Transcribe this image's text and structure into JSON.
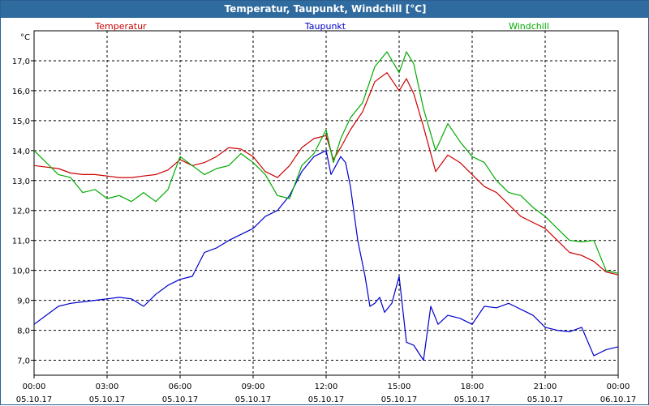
{
  "window": {
    "title": "Temperatur, Taupunkt, Windchill [°C]"
  },
  "chart_data": {
    "type": "line",
    "title": "Temperatur, Taupunkt, Windchill [°C]",
    "ylabel": "°C",
    "xlabel": "",
    "ylim": [
      6.5,
      18.0
    ],
    "xlim": [
      0,
      24
    ],
    "yticks": [
      7,
      8,
      9,
      10,
      11,
      12,
      13,
      14,
      15,
      16,
      17
    ],
    "ytick_labels": [
      "7,0",
      "8,0",
      "9,0",
      "10,0",
      "11,0",
      "12,0",
      "13,0",
      "14,0",
      "15,0",
      "16,0",
      "17,0"
    ],
    "xticks": [
      {
        "time": "00:00",
        "date": "05.10.17",
        "x": 0
      },
      {
        "time": "03:00",
        "date": "05.10.17",
        "x": 3
      },
      {
        "time": "06:00",
        "date": "05.10.17",
        "x": 6
      },
      {
        "time": "09:00",
        "date": "05.10.17",
        "x": 9
      },
      {
        "time": "12:00",
        "date": "05.10.17",
        "x": 12
      },
      {
        "time": "15:00",
        "date": "05.10.17",
        "x": 15
      },
      {
        "time": "18:00",
        "date": "05.10.17",
        "x": 18
      },
      {
        "time": "21:00",
        "date": "05.10.17",
        "x": 21
      },
      {
        "time": "00:00",
        "date": "06.10.17",
        "x": 24
      }
    ],
    "grid": true,
    "series": [
      {
        "name": "Temperatur",
        "color": "#cc0000",
        "x": [
          0,
          0.5,
          1,
          1.5,
          2,
          2.5,
          3,
          3.5,
          4,
          4.5,
          5,
          5.5,
          6,
          6.5,
          7,
          7.5,
          8,
          8.5,
          9,
          9.5,
          10,
          10.5,
          11,
          11.5,
          12,
          12.3,
          12.6,
          13,
          13.5,
          14,
          14.5,
          15,
          15.3,
          15.6,
          16,
          16.5,
          17,
          17.5,
          18,
          18.5,
          19,
          19.5,
          20,
          20.5,
          21,
          21.5,
          22,
          22.5,
          23,
          23.5,
          24
        ],
        "values": [
          13.5,
          13.45,
          13.4,
          13.25,
          13.2,
          13.2,
          13.15,
          13.1,
          13.1,
          13.15,
          13.2,
          13.35,
          13.7,
          13.5,
          13.6,
          13.8,
          14.1,
          14.05,
          13.8,
          13.3,
          13.1,
          13.5,
          14.1,
          14.4,
          14.5,
          13.7,
          14.1,
          14.7,
          15.3,
          16.3,
          16.6,
          16.0,
          16.4,
          15.9,
          14.8,
          13.3,
          13.85,
          13.6,
          13.2,
          12.8,
          12.6,
          12.2,
          11.8,
          11.6,
          11.4,
          11.0,
          10.6,
          10.5,
          10.3,
          9.95,
          9.85
        ]
      },
      {
        "name": "Taupunkt",
        "color": "#0000cc",
        "x": [
          0,
          0.5,
          1,
          1.5,
          2,
          2.5,
          3,
          3.5,
          4,
          4.5,
          5,
          5.5,
          6,
          6.5,
          7,
          7.5,
          8,
          8.5,
          9,
          9.5,
          10,
          10.5,
          11,
          11.5,
          12,
          12.2,
          12.4,
          12.6,
          12.8,
          13,
          13.3,
          13.6,
          13.8,
          14,
          14.2,
          14.4,
          14.7,
          15,
          15.3,
          15.6,
          16,
          16.3,
          16.6,
          17,
          17.5,
          18,
          18.5,
          19,
          19.5,
          20,
          20.5,
          21,
          21.5,
          22,
          22.5,
          23,
          23.5,
          24
        ],
        "values": [
          8.2,
          8.5,
          8.8,
          8.9,
          8.95,
          9.0,
          9.05,
          9.1,
          9.05,
          8.8,
          9.2,
          9.5,
          9.7,
          9.8,
          10.6,
          10.75,
          11.0,
          11.2,
          11.4,
          11.8,
          12.0,
          12.5,
          13.3,
          13.8,
          14.0,
          13.2,
          13.5,
          13.8,
          13.6,
          12.8,
          11.0,
          9.8,
          8.8,
          8.9,
          9.1,
          8.6,
          8.9,
          9.8,
          7.6,
          7.5,
          7.0,
          8.8,
          8.2,
          8.5,
          8.4,
          8.2,
          8.8,
          8.75,
          8.9,
          8.7,
          8.5,
          8.1,
          8.0,
          7.95,
          8.1,
          7.15,
          7.35,
          7.45
        ]
      },
      {
        "name": "Windchill",
        "color": "#00aa00",
        "x": [
          0,
          0.5,
          1,
          1.5,
          2,
          2.5,
          3,
          3.5,
          4,
          4.5,
          5,
          5.5,
          6,
          6.5,
          7,
          7.5,
          8,
          8.5,
          9,
          9.5,
          10,
          10.5,
          11,
          11.5,
          12,
          12.3,
          12.6,
          13,
          13.5,
          14,
          14.5,
          15,
          15.3,
          15.6,
          16,
          16.5,
          17,
          17.5,
          18,
          18.5,
          19,
          19.5,
          20,
          20.5,
          21,
          21.5,
          22,
          22.5,
          23,
          23.5,
          24
        ],
        "values": [
          14.0,
          13.6,
          13.2,
          13.1,
          12.6,
          12.7,
          12.4,
          12.5,
          12.3,
          12.6,
          12.3,
          12.7,
          13.8,
          13.5,
          13.2,
          13.4,
          13.5,
          13.9,
          13.6,
          13.2,
          12.5,
          12.4,
          13.5,
          13.9,
          14.7,
          13.6,
          14.4,
          15.1,
          15.6,
          16.8,
          17.3,
          16.6,
          17.3,
          16.9,
          15.4,
          14.0,
          14.9,
          14.3,
          13.8,
          13.6,
          13.0,
          12.6,
          12.5,
          12.1,
          11.8,
          11.4,
          11.0,
          10.95,
          11.0,
          10.0,
          9.9
        ]
      }
    ],
    "legend": [
      "Temperatur",
      "Taupunkt",
      "Windchill"
    ],
    "legend_position": "top"
  }
}
